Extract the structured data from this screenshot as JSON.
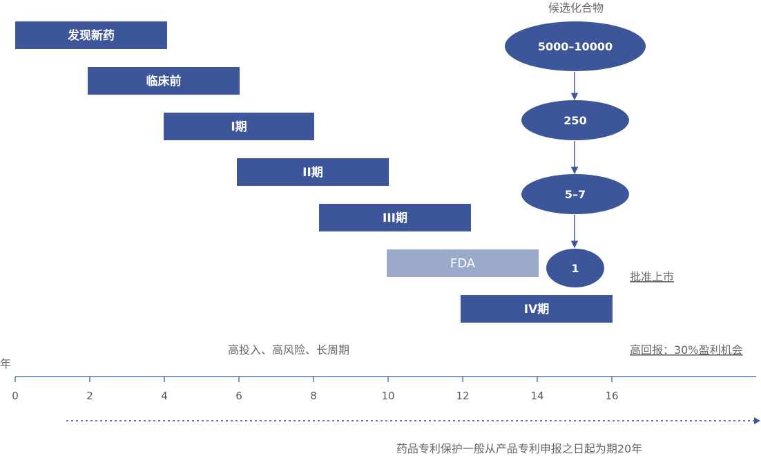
{
  "colors": {
    "primary": "#3d5599",
    "faded": "#9ba9ca",
    "axis": "#5a6fa8",
    "text": "#666666"
  },
  "phases": [
    {
      "label": "发现新药",
      "start": 0,
      "end": 4
    },
    {
      "label": "临床前",
      "start": 2,
      "end": 6
    },
    {
      "label": "I期",
      "start": 4,
      "end": 8
    },
    {
      "label": "II期",
      "start": 6,
      "end": 10
    },
    {
      "label": "III期",
      "start": 8.2,
      "end": 12.2
    },
    {
      "label": "FDA",
      "start": 10,
      "end": 14,
      "faded": true
    },
    {
      "label": "IV期",
      "start": 12,
      "end": 16
    }
  ],
  "funnel": {
    "title": "候选化合物",
    "nodes": [
      "5000–10000",
      "250",
      "5–7",
      "1"
    ],
    "approval_label": "批准上市"
  },
  "axis": {
    "unit_label": "年",
    "ticks": [
      "0",
      "2",
      "4",
      "6",
      "8",
      "10",
      "12",
      "14",
      "16"
    ]
  },
  "notes": {
    "left": "高投入、高风险、长周期",
    "right": "高回报：30%盈利机会",
    "patent": "药品专利保护一般从产品专利申报之日起为期20年"
  }
}
